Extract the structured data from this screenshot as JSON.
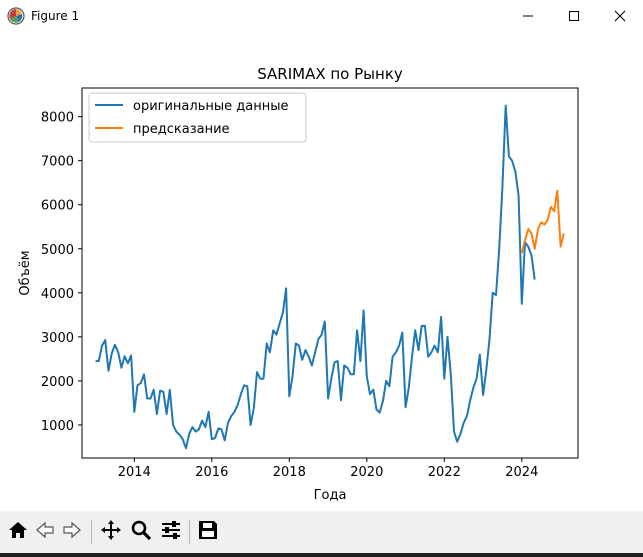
{
  "window": {
    "title": "Figure 1"
  },
  "icons": {
    "app": "matplotlib-figure-icon",
    "minimize": "minimize-icon",
    "maximize": "maximize-icon",
    "close": "close-icon",
    "home": "home-icon",
    "back": "back-arrow-icon",
    "forward": "forward-arrow-icon",
    "pan": "pan-move-icon",
    "zoom": "zoom-magnifier-icon",
    "configure": "configure-subplots-icon",
    "save": "save-floppy-icon"
  },
  "chart_data": {
    "type": "line",
    "title": "SARIMAX по Рынку",
    "xlabel": "Года",
    "ylabel": "Объём",
    "xlim": [
      2012.65,
      2025.45
    ],
    "ylim": [
      250,
      8650
    ],
    "xticks": [
      2014,
      2016,
      2018,
      2020,
      2022,
      2024
    ],
    "yticks": [
      1000,
      2000,
      3000,
      4000,
      5000,
      6000,
      7000,
      8000
    ],
    "grid": false,
    "legend_position": "upper left",
    "series": [
      {
        "name": "оригинальные данные",
        "color": "#1f77b4",
        "points": [
          [
            "2013-01-01",
            2450
          ],
          [
            "2013-02-01",
            2450
          ],
          [
            "2013-03-01",
            2800
          ],
          [
            "2013-04-01",
            2930
          ],
          [
            "2013-05-01",
            2230
          ],
          [
            "2013-06-01",
            2620
          ],
          [
            "2013-07-01",
            2820
          ],
          [
            "2013-08-01",
            2650
          ],
          [
            "2013-09-01",
            2300
          ],
          [
            "2013-10-01",
            2560
          ],
          [
            "2013-11-01",
            2400
          ],
          [
            "2013-12-01",
            2580
          ],
          [
            "2014-01-01",
            1300
          ],
          [
            "2014-02-01",
            1900
          ],
          [
            "2014-03-01",
            1950
          ],
          [
            "2014-04-01",
            2150
          ],
          [
            "2014-05-01",
            1600
          ],
          [
            "2014-06-01",
            1600
          ],
          [
            "2014-07-01",
            1800
          ],
          [
            "2014-08-01",
            1250
          ],
          [
            "2014-09-01",
            1780
          ],
          [
            "2014-10-01",
            1750
          ],
          [
            "2014-11-01",
            1250
          ],
          [
            "2014-12-01",
            1800
          ],
          [
            "2015-01-01",
            1000
          ],
          [
            "2015-02-01",
            850
          ],
          [
            "2015-03-01",
            780
          ],
          [
            "2015-04-01",
            680
          ],
          [
            "2015-05-01",
            470
          ],
          [
            "2015-06-01",
            800
          ],
          [
            "2015-07-01",
            950
          ],
          [
            "2015-08-01",
            850
          ],
          [
            "2015-09-01",
            900
          ],
          [
            "2015-10-01",
            1100
          ],
          [
            "2015-11-01",
            950
          ],
          [
            "2015-12-01",
            1300
          ],
          [
            "2016-01-01",
            680
          ],
          [
            "2016-02-01",
            700
          ],
          [
            "2016-03-01",
            920
          ],
          [
            "2016-04-01",
            900
          ],
          [
            "2016-05-01",
            650
          ],
          [
            "2016-06-01",
            1050
          ],
          [
            "2016-07-01",
            1200
          ],
          [
            "2016-08-01",
            1300
          ],
          [
            "2016-09-01",
            1450
          ],
          [
            "2016-10-01",
            1700
          ],
          [
            "2016-11-01",
            1900
          ],
          [
            "2016-12-01",
            1880
          ],
          [
            "2017-01-01",
            1000
          ],
          [
            "2017-02-01",
            1380
          ],
          [
            "2017-03-01",
            2200
          ],
          [
            "2017-04-01",
            2050
          ],
          [
            "2017-05-01",
            2050
          ],
          [
            "2017-06-01",
            2850
          ],
          [
            "2017-07-01",
            2650
          ],
          [
            "2017-08-01",
            3150
          ],
          [
            "2017-09-01",
            3050
          ],
          [
            "2017-10-01",
            3300
          ],
          [
            "2017-11-01",
            3550
          ],
          [
            "2017-12-01",
            4100
          ],
          [
            "2018-01-01",
            1650
          ],
          [
            "2018-02-01",
            2100
          ],
          [
            "2018-03-01",
            2850
          ],
          [
            "2018-04-01",
            2800
          ],
          [
            "2018-05-01",
            2480
          ],
          [
            "2018-06-01",
            2700
          ],
          [
            "2018-07-01",
            2550
          ],
          [
            "2018-08-01",
            2350
          ],
          [
            "2018-09-01",
            2650
          ],
          [
            "2018-10-01",
            2950
          ],
          [
            "2018-11-01",
            3050
          ],
          [
            "2018-12-01",
            3350
          ],
          [
            "2019-01-01",
            1600
          ],
          [
            "2019-02-01",
            2050
          ],
          [
            "2019-03-01",
            2420
          ],
          [
            "2019-04-01",
            2450
          ],
          [
            "2019-05-01",
            1560
          ],
          [
            "2019-06-01",
            2350
          ],
          [
            "2019-07-01",
            2300
          ],
          [
            "2019-08-01",
            2150
          ],
          [
            "2019-09-01",
            2150
          ],
          [
            "2019-10-01",
            3150
          ],
          [
            "2019-11-01",
            2450
          ],
          [
            "2019-12-01",
            3600
          ],
          [
            "2020-01-01",
            2100
          ],
          [
            "2020-02-01",
            1700
          ],
          [
            "2020-03-01",
            1800
          ],
          [
            "2020-04-01",
            1350
          ],
          [
            "2020-05-01",
            1280
          ],
          [
            "2020-06-01",
            1550
          ],
          [
            "2020-07-01",
            2000
          ],
          [
            "2020-08-01",
            1880
          ],
          [
            "2020-09-01",
            2550
          ],
          [
            "2020-10-01",
            2650
          ],
          [
            "2020-11-01",
            2800
          ],
          [
            "2020-12-01",
            3100
          ],
          [
            "2021-01-01",
            1400
          ],
          [
            "2021-02-01",
            1850
          ],
          [
            "2021-03-01",
            2550
          ],
          [
            "2021-04-01",
            3150
          ],
          [
            "2021-05-01",
            2700
          ],
          [
            "2021-06-01",
            3250
          ],
          [
            "2021-07-01",
            3250
          ],
          [
            "2021-08-01",
            2550
          ],
          [
            "2021-09-01",
            2650
          ],
          [
            "2021-10-01",
            2800
          ],
          [
            "2021-11-01",
            2650
          ],
          [
            "2021-12-01",
            3450
          ],
          [
            "2022-01-01",
            2050
          ],
          [
            "2022-02-01",
            3000
          ],
          [
            "2022-03-01",
            2150
          ],
          [
            "2022-04-01",
            850
          ],
          [
            "2022-05-01",
            620
          ],
          [
            "2022-06-01",
            800
          ],
          [
            "2022-07-01",
            1050
          ],
          [
            "2022-08-01",
            1200
          ],
          [
            "2022-09-01",
            1550
          ],
          [
            "2022-10-01",
            1850
          ],
          [
            "2022-11-01",
            2050
          ],
          [
            "2022-12-01",
            2600
          ],
          [
            "2023-01-01",
            1680
          ],
          [
            "2023-02-01",
            2250
          ],
          [
            "2023-03-01",
            2950
          ],
          [
            "2023-04-01",
            4000
          ],
          [
            "2023-05-01",
            3950
          ],
          [
            "2023-06-01",
            5000
          ],
          [
            "2023-07-01",
            6400
          ],
          [
            "2023-08-01",
            8250
          ],
          [
            "2023-09-01",
            7100
          ],
          [
            "2023-10-01",
            7000
          ],
          [
            "2023-11-01",
            6750
          ],
          [
            "2023-12-01",
            6200
          ],
          [
            "2024-01-01",
            3750
          ],
          [
            "2024-02-01",
            5150
          ],
          [
            "2024-03-01",
            5050
          ],
          [
            "2024-04-01",
            4850
          ],
          [
            "2024-05-01",
            4300
          ]
        ]
      },
      {
        "name": "предсказание",
        "color": "#ff7f0e",
        "points": [
          [
            "2024-01-01",
            4900
          ],
          [
            "2024-02-01",
            5200
          ],
          [
            "2024-03-01",
            5450
          ],
          [
            "2024-04-01",
            5350
          ],
          [
            "2024-05-01",
            5000
          ],
          [
            "2024-06-01",
            5450
          ],
          [
            "2024-07-01",
            5600
          ],
          [
            "2024-08-01",
            5550
          ],
          [
            "2024-09-01",
            5650
          ],
          [
            "2024-10-01",
            5950
          ],
          [
            "2024-11-01",
            5850
          ],
          [
            "2024-12-01",
            6320
          ],
          [
            "2025-01-01",
            5050
          ],
          [
            "2025-02-01",
            5350
          ]
        ]
      }
    ]
  }
}
